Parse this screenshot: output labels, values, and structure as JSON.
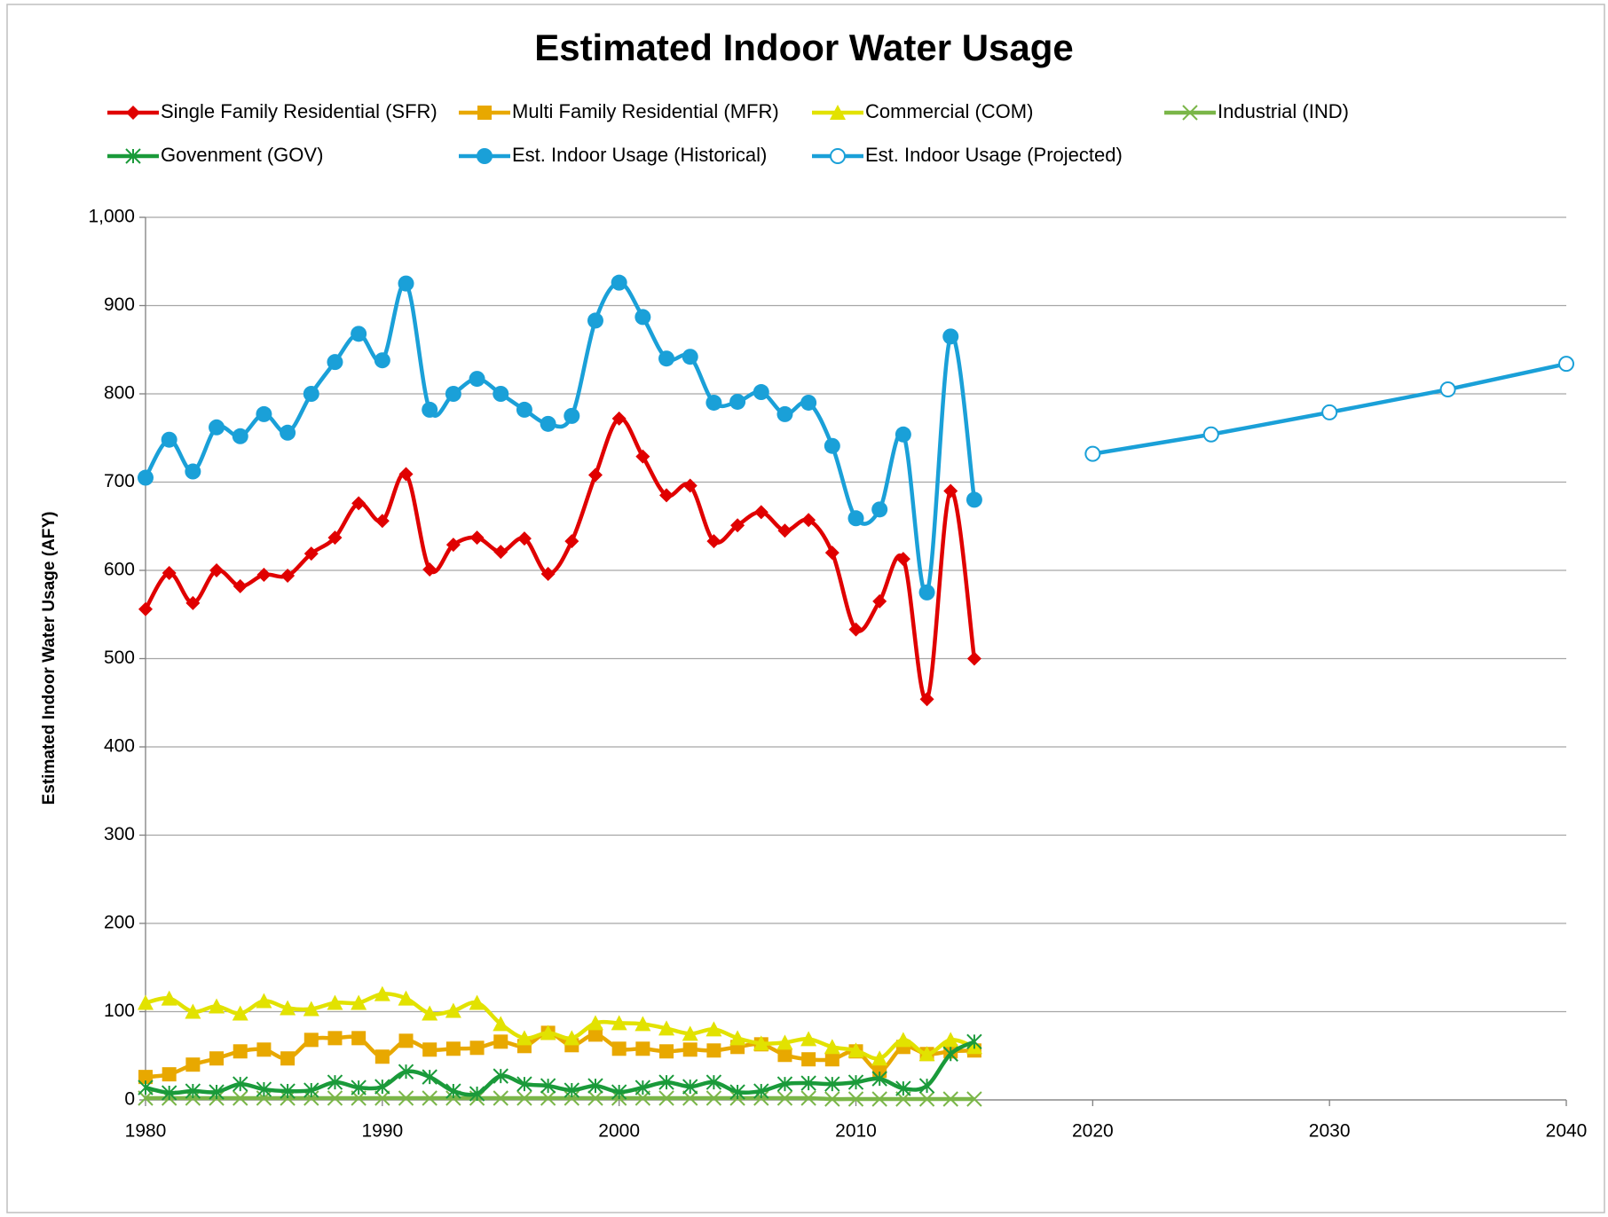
{
  "chart_data": {
    "type": "line",
    "title": "Estimated Indoor Water Usage",
    "ylabel": "Estimated Indoor Water Usage (AFY)",
    "x": [
      1980,
      1981,
      1982,
      1983,
      1984,
      1985,
      1986,
      1987,
      1988,
      1989,
      1990,
      1991,
      1992,
      1993,
      1994,
      1995,
      1996,
      1997,
      1998,
      1999,
      2000,
      2001,
      2002,
      2003,
      2004,
      2005,
      2006,
      2007,
      2008,
      2009,
      2010,
      2011,
      2012,
      2013,
      2014,
      2015
    ],
    "xlim": [
      1980,
      2040
    ],
    "xticks": [
      1980,
      1990,
      2000,
      2010,
      2020,
      2030,
      2040
    ],
    "ylim": [
      0,
      1000
    ],
    "yticks": [
      0,
      100,
      200,
      300,
      400,
      500,
      600,
      700,
      800,
      900,
      {
        "value": 1000,
        "label": "1,000"
      }
    ],
    "grid": true,
    "series": [
      {
        "name": "Single Family Residential (SFR)",
        "color": "#e00000",
        "marker": "diamond",
        "smooth": true,
        "values": [
          556,
          597,
          563,
          600,
          582,
          595,
          594,
          619,
          637,
          676,
          656,
          709,
          601,
          629,
          637,
          621,
          636,
          596,
          633,
          708,
          772,
          729,
          685,
          696,
          633,
          651,
          666,
          645,
          657,
          620,
          533,
          565,
          613,
          454,
          690,
          500
        ]
      },
      {
        "name": "Multi Family Residential (MFR)",
        "color": "#e8a800",
        "marker": "square",
        "smooth": true,
        "values": [
          26,
          29,
          40,
          47,
          55,
          57,
          47,
          68,
          70,
          70,
          49,
          67,
          57,
          58,
          59,
          66,
          61,
          76,
          62,
          74,
          58,
          58,
          55,
          57,
          56,
          60,
          63,
          51,
          46,
          46,
          55,
          33,
          60,
          52,
          55,
          56
        ]
      },
      {
        "name": "Commercial (COM)",
        "color": "#e2e200",
        "marker": "triangle",
        "smooth": true,
        "values": [
          110,
          115,
          100,
          106,
          98,
          112,
          104,
          103,
          110,
          110,
          120,
          115,
          98,
          101,
          110,
          86,
          70,
          76,
          70,
          87,
          87,
          86,
          81,
          75,
          80,
          70,
          64,
          65,
          69,
          60,
          56,
          47,
          68,
          52,
          68,
          60
        ]
      },
      {
        "name": "Industrial (IND)",
        "color": "#7ab648",
        "marker": "x",
        "smooth": true,
        "values": [
          2,
          2,
          2,
          2,
          2,
          2,
          2,
          2,
          2,
          2,
          2,
          2,
          2,
          2,
          2,
          2,
          2,
          2,
          2,
          2,
          2,
          2,
          2,
          2,
          2,
          2,
          2,
          2,
          2,
          1,
          1,
          1,
          1,
          1,
          1,
          1
        ]
      },
      {
        "name": "Govenment (GOV)",
        "color": "#1a9a3a",
        "marker": "star",
        "smooth": true,
        "values": [
          14,
          8,
          10,
          9,
          18,
          12,
          10,
          11,
          20,
          14,
          15,
          32,
          26,
          10,
          7,
          27,
          18,
          16,
          11,
          16,
          9,
          14,
          20,
          15,
          20,
          9,
          10,
          18,
          19,
          18,
          20,
          24,
          13,
          16,
          52,
          66
        ]
      },
      {
        "name": "Est. Indoor Usage (Historical)",
        "color": "#1aa0d8",
        "marker": "circle",
        "smooth": true,
        "values": [
          705,
          748,
          712,
          762,
          752,
          777,
          756,
          800,
          836,
          868,
          838,
          925,
          782,
          800,
          817,
          800,
          782,
          766,
          775,
          883,
          926,
          887,
          840,
          842,
          790,
          791,
          802,
          777,
          790,
          741,
          659,
          669,
          754,
          575,
          865,
          680
        ]
      },
      {
        "name": "Est. Indoor Usage (Projected)",
        "color": "#1aa0d8",
        "marker": "open-circle",
        "smooth": false,
        "x": [
          2020,
          2025,
          2030,
          2035,
          2040
        ],
        "values": [
          732,
          754,
          779,
          805,
          834
        ]
      }
    ]
  }
}
